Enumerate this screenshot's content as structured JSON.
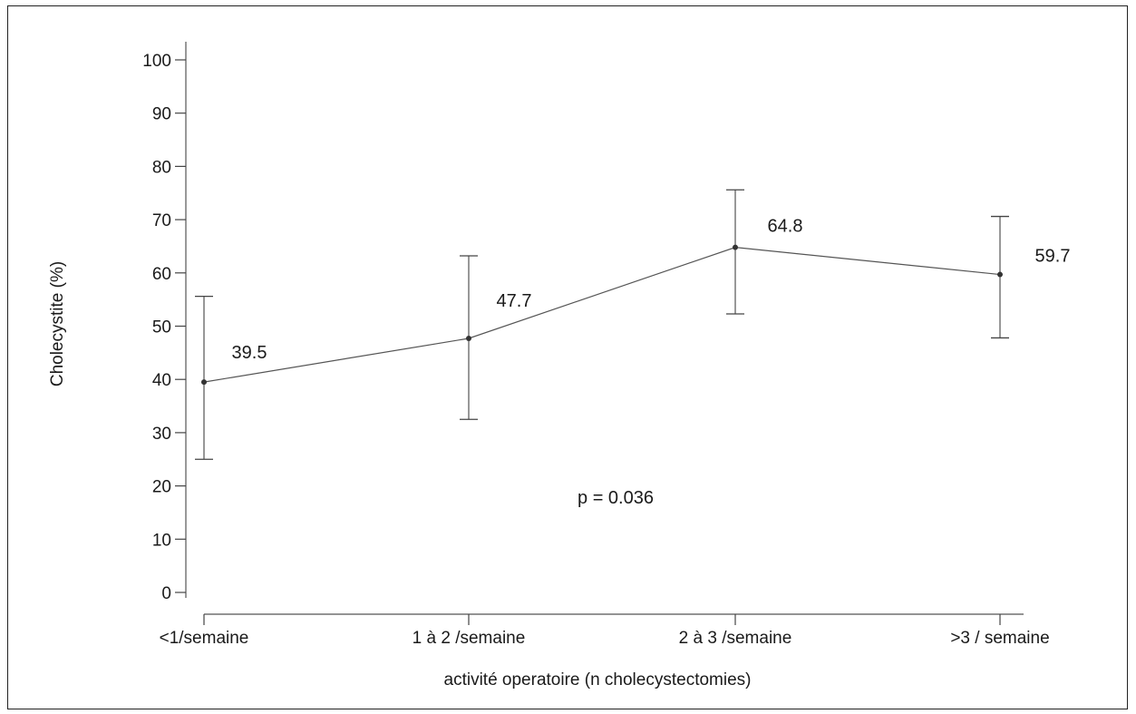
{
  "chart_data": {
    "type": "line",
    "categories": [
      "<1/semaine",
      "1 à 2 /semaine",
      "2 à 3 /semaine",
      ">3 / semaine"
    ],
    "series": [
      {
        "values": [
          39.5,
          47.7,
          64.8,
          59.7
        ],
        "error_low": [
          25.0,
          32.5,
          52.3,
          47.8
        ],
        "error_high": [
          55.6,
          63.2,
          75.6,
          70.6
        ],
        "data_labels": [
          "39.5",
          "47.7",
          "64.8",
          "59.7"
        ]
      }
    ],
    "xlabel": "activité operatoire (n cholecystectomies)",
    "ylabel": "Cholecystite (%)",
    "ylim": [
      0,
      100
    ],
    "yticks": [
      0,
      10,
      20,
      30,
      40,
      50,
      60,
      70,
      80,
      90,
      100
    ],
    "annotation": "p = 0.036",
    "grid": false,
    "colors": {
      "line": "#555555",
      "marker": "#333333",
      "errorbar": "#444444"
    }
  }
}
